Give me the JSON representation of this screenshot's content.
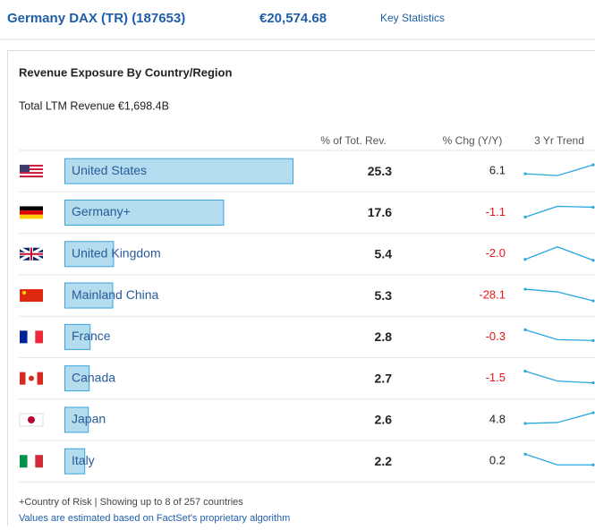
{
  "header": {
    "title": "Germany DAX (TR) (187653)",
    "price": "€20,574.68",
    "link": "Key Statistics"
  },
  "panel": {
    "title": "Revenue Exposure By Country/Region",
    "total": "Total LTM Revenue €1,698.4B",
    "columns": [
      "% of Tot. Rev.",
      "% Chg (Y/Y)",
      "3 Yr Trend"
    ],
    "rows": [
      {
        "country": "United States",
        "share": 25.3,
        "change": 6.1,
        "trend": [
          -3,
          -5,
          7
        ]
      },
      {
        "country": "Germany+",
        "share": 17.6,
        "change": -1.1,
        "trend": [
          -5,
          7,
          6
        ]
      },
      {
        "country": "United Kingdom",
        "share": 5.4,
        "change": -2.0,
        "change_label": "-2.0",
        "trend": [
          -6,
          8,
          -7
        ]
      },
      {
        "country": "Mainland China",
        "share": 5.3,
        "change": -28.1,
        "trend": [
          7,
          4,
          -6
        ]
      },
      {
        "country": "France",
        "share": 2.8,
        "change": -0.3,
        "trend": [
          8,
          -3,
          -4
        ]
      },
      {
        "country": "Canada",
        "share": 2.7,
        "change": -1.5,
        "trend": [
          8,
          -3,
          -5
        ]
      },
      {
        "country": "Japan",
        "share": 2.6,
        "change": 4.8,
        "trend": [
          -4,
          -3,
          8
        ]
      },
      {
        "country": "Italy",
        "share": 2.2,
        "change": 0.2,
        "trend": [
          8,
          -4,
          -4
        ]
      }
    ],
    "footnote": "+Country of Risk | Showing up to 8 of 257 countries",
    "disclaimer": "Values are estimated based on FactSet's proprietary algorithm"
  }
}
